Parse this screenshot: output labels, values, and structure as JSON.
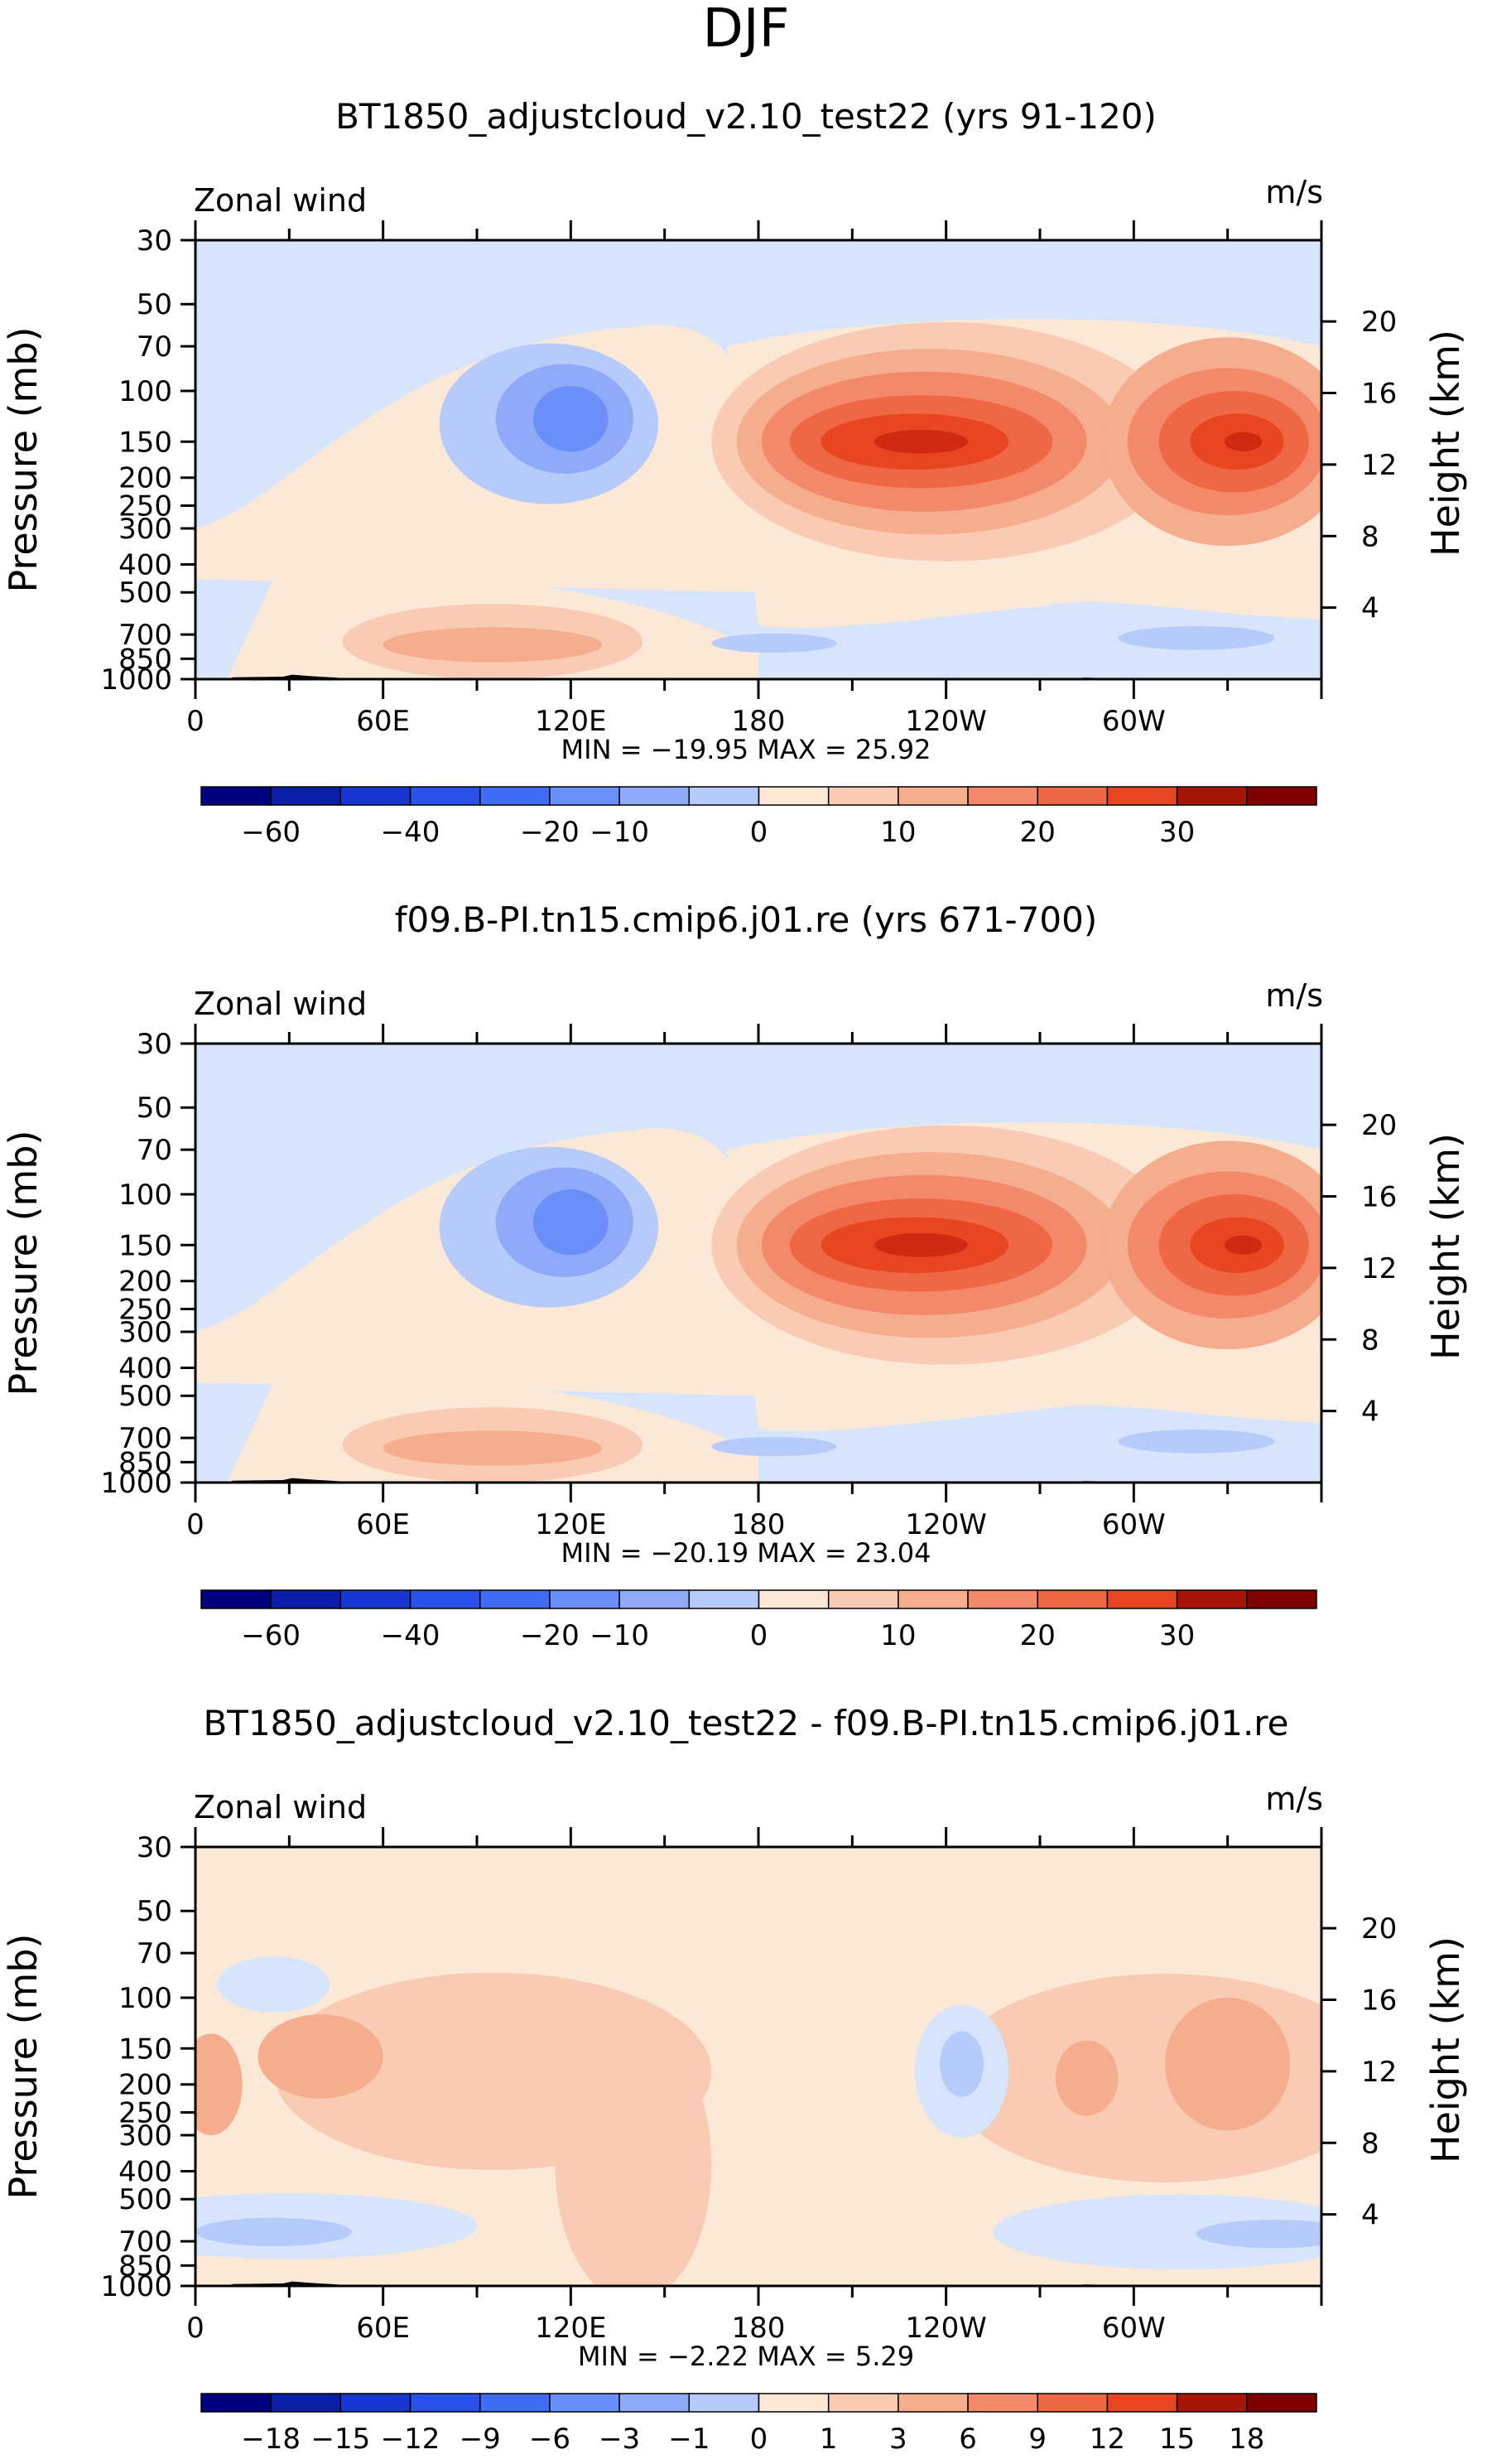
{
  "season_label": "DJF",
  "cb_colors": [
    "#00007f",
    "#0b1ea8",
    "#1836d0",
    "#2a52e8",
    "#3f6df5",
    "#6a8ff8",
    "#8eaaf8",
    "#b6cbfa",
    "#d6e5fb",
    "#fce8d6",
    "#f8cbb2",
    "#f5ad8d",
    "#f3896a",
    "#f06843",
    "#e84622",
    "#d12a13",
    "#a81508",
    "#7e0000"
  ],
  "chart_data": [
    {
      "type": "contour",
      "title": "BT1850_adjustcloud_v2.10_test22 (yrs 91-120)",
      "variable_label": "Zonal wind",
      "units": "m/s",
      "ylabel": "Pressure (mb)",
      "ylabel_right": "Height (km)",
      "xticks": [
        "0",
        "60E",
        "120E",
        "180",
        "120W",
        "60W"
      ],
      "yticks": [
        30,
        50,
        70,
        100,
        150,
        200,
        250,
        300,
        400,
        500,
        700,
        850,
        1000
      ],
      "yticks_right": [
        20,
        16,
        12,
        8,
        4
      ],
      "stats_text": "MIN = −19.95  MAX =  25.92",
      "colorbar_labels": [
        "−60",
        "−40",
        "−20",
        "−10",
        "0",
        "10",
        "20",
        "30"
      ]
    },
    {
      "type": "contour",
      "title": "f09.B-PI.tn15.cmip6.j01.re (yrs 671-700)",
      "variable_label": "Zonal wind",
      "units": "m/s",
      "ylabel": "Pressure (mb)",
      "ylabel_right": "Height (km)",
      "xticks": [
        "0",
        "60E",
        "120E",
        "180",
        "120W",
        "60W"
      ],
      "yticks": [
        30,
        50,
        70,
        100,
        150,
        200,
        250,
        300,
        400,
        500,
        700,
        850,
        1000
      ],
      "yticks_right": [
        20,
        16,
        12,
        8,
        4
      ],
      "stats_text": "MIN = −20.19  MAX =  23.04",
      "colorbar_labels": [
        "−60",
        "−40",
        "−20",
        "−10",
        "0",
        "10",
        "20",
        "30"
      ]
    },
    {
      "type": "contour",
      "title": "BT1850_adjustcloud_v2.10_test22 - f09.B-PI.tn15.cmip6.j01.re",
      "variable_label": "Zonal wind",
      "units": "m/s",
      "ylabel": "Pressure (mb)",
      "ylabel_right": "Height (km)",
      "xticks": [
        "0",
        "60E",
        "120E",
        "180",
        "120W",
        "60W"
      ],
      "yticks": [
        30,
        50,
        70,
        100,
        150,
        200,
        250,
        300,
        400,
        500,
        700,
        850,
        1000
      ],
      "yticks_right": [
        20,
        16,
        12,
        8,
        4
      ],
      "stats_text": "MIN =  −2.22  MAX =   5.29",
      "colorbar_labels": [
        "−18",
        "−15",
        "−12",
        "−9",
        "−6",
        "−3",
        "−1",
        "0",
        "1",
        "3",
        "6",
        "9",
        "12",
        "15",
        "18"
      ]
    }
  ]
}
